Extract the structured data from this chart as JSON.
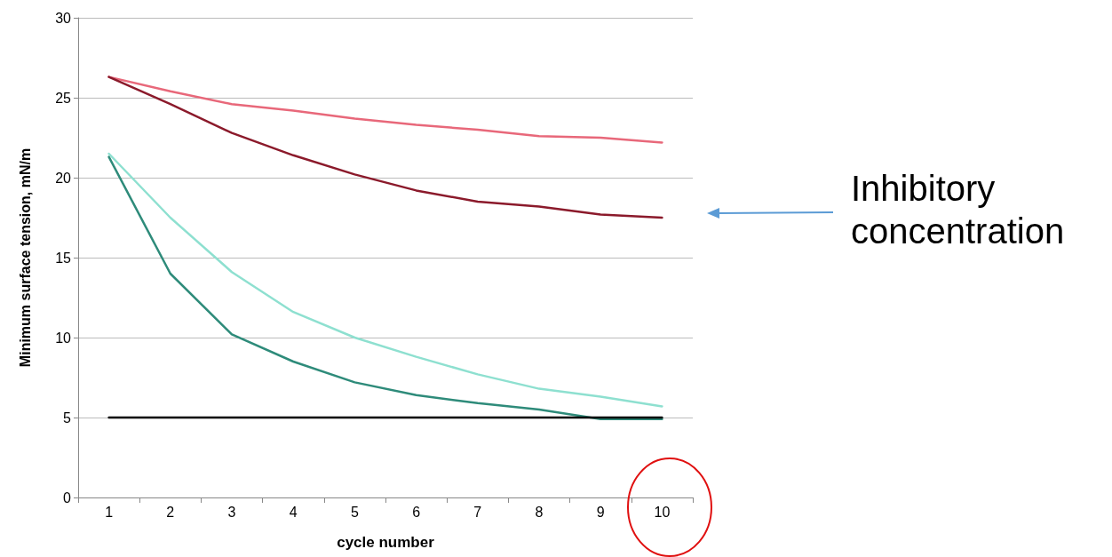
{
  "chart_data": {
    "type": "line",
    "xlabel": "cycle number",
    "ylabel": "Minimum surface tension, mN/m",
    "categories": [
      "1",
      "2",
      "3",
      "4",
      "5",
      "6",
      "7",
      "8",
      "9",
      "10"
    ],
    "series": [
      {
        "color": "#e8687a",
        "values": [
          26.3,
          25.4,
          24.6,
          24.2,
          23.7,
          23.3,
          23.0,
          22.6,
          22.5,
          22.2
        ]
      },
      {
        "color": "#8b1a2b",
        "values": [
          26.3,
          24.6,
          22.8,
          21.4,
          20.2,
          19.2,
          18.5,
          18.2,
          17.7,
          17.5
        ]
      },
      {
        "color": "#8ee0d0",
        "values": [
          21.5,
          17.5,
          14.1,
          11.6,
          10.0,
          8.8,
          7.7,
          6.8,
          6.3,
          5.7
        ]
      },
      {
        "color": "#2e8b7a",
        "values": [
          21.3,
          14.0,
          10.2,
          8.5,
          7.2,
          6.4,
          5.9,
          5.5,
          4.9,
          4.9
        ]
      },
      {
        "color": "#000000",
        "values": [
          5,
          5,
          5,
          5,
          5,
          5,
          5,
          5,
          5,
          5
        ]
      }
    ],
    "ylim": [
      0,
      30
    ],
    "yticks": [
      0,
      5,
      10,
      15,
      20,
      25,
      30
    ],
    "grid": "y",
    "marker": "none",
    "line_style": "solid",
    "annotations": [
      "Inhibitory concentration"
    ]
  }
}
